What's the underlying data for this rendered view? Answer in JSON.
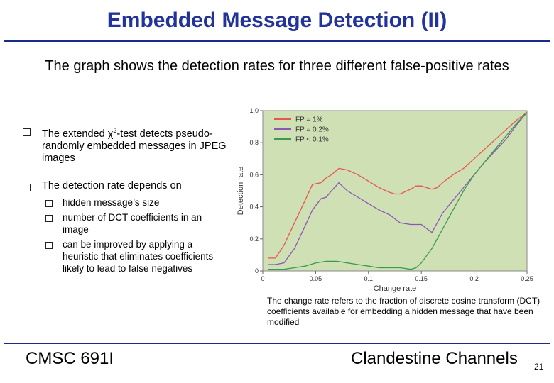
{
  "slide": {
    "title": "Embedded Message Detection (II)",
    "intro": "The graph shows the detection rates for three different false-positive rates",
    "bullets": [
      {
        "prefix": "The extended ",
        "chi": "χ",
        "sup": "2",
        "suffix": "-test detects pseudo-randomly embedded messages in JPEG images"
      },
      {
        "text": "The detection rate depends on"
      }
    ],
    "sub_bullets": [
      "hidden message’s size",
      "number of DCT coefficients in an image",
      "can be improved by applying a heuristic that eliminates coefficients likely to lead to false negatives"
    ],
    "caption": "The change rate refers to the fraction of discrete cosine transform (DCT) coefficients available for embedding a hidden message that have been modified",
    "footer_left": "CMSC 691I",
    "footer_right": "Clandestine Channels",
    "page_number": "21"
  },
  "chart_data": {
    "type": "line",
    "xlabel": "Change rate",
    "ylabel": "Detection rate",
    "xlim": [
      0,
      0.25
    ],
    "ylim": [
      0,
      1.0
    ],
    "xticks": [
      "0",
      "0.05",
      "0.1",
      "0.15",
      "0.2",
      "0.25"
    ],
    "yticks": [
      "0",
      "0.2",
      "0.4",
      "0.6",
      "0.8",
      "1.0"
    ],
    "legend_position": "top-left",
    "grid": false,
    "background": "#cfe0b4",
    "series": [
      {
        "name": "FP = 1%",
        "color": "#e8554d",
        "x": [
          0.005,
          0.012,
          0.02,
          0.03,
          0.04,
          0.047,
          0.055,
          0.06,
          0.065,
          0.072,
          0.08,
          0.09,
          0.1,
          0.11,
          0.12,
          0.125,
          0.13,
          0.14,
          0.145,
          0.15,
          0.155,
          0.16,
          0.165,
          0.17,
          0.18,
          0.19,
          0.2,
          0.21,
          0.22,
          0.23,
          0.24,
          0.25
        ],
        "y": [
          0.08,
          0.08,
          0.16,
          0.3,
          0.44,
          0.54,
          0.55,
          0.58,
          0.6,
          0.64,
          0.63,
          0.6,
          0.56,
          0.52,
          0.49,
          0.48,
          0.48,
          0.51,
          0.53,
          0.53,
          0.52,
          0.51,
          0.52,
          0.55,
          0.6,
          0.64,
          0.7,
          0.76,
          0.82,
          0.88,
          0.94,
          0.99
        ]
      },
      {
        "name": "FP = 0.2%",
        "color": "#8a57b8",
        "x": [
          0.005,
          0.012,
          0.02,
          0.03,
          0.04,
          0.047,
          0.055,
          0.06,
          0.065,
          0.072,
          0.08,
          0.09,
          0.1,
          0.11,
          0.12,
          0.13,
          0.14,
          0.15,
          0.16,
          0.17,
          0.18,
          0.19,
          0.2,
          0.21,
          0.22,
          0.23,
          0.24,
          0.25
        ],
        "y": [
          0.04,
          0.04,
          0.05,
          0.14,
          0.28,
          0.38,
          0.45,
          0.46,
          0.5,
          0.55,
          0.5,
          0.46,
          0.42,
          0.38,
          0.35,
          0.3,
          0.29,
          0.29,
          0.24,
          0.36,
          0.44,
          0.52,
          0.6,
          0.68,
          0.75,
          0.82,
          0.91,
          0.99
        ]
      },
      {
        "name": "FP < 0.1%",
        "color": "#3a9a50",
        "x": [
          0.005,
          0.02,
          0.03,
          0.04,
          0.05,
          0.06,
          0.07,
          0.08,
          0.09,
          0.1,
          0.11,
          0.12,
          0.13,
          0.14,
          0.145,
          0.15,
          0.16,
          0.17,
          0.18,
          0.19,
          0.2,
          0.21,
          0.22,
          0.23,
          0.24,
          0.25
        ],
        "y": [
          0.01,
          0.01,
          0.02,
          0.03,
          0.05,
          0.06,
          0.06,
          0.05,
          0.04,
          0.03,
          0.02,
          0.02,
          0.02,
          0.01,
          0.02,
          0.05,
          0.14,
          0.26,
          0.38,
          0.5,
          0.6,
          0.68,
          0.76,
          0.84,
          0.92,
          0.99
        ]
      }
    ]
  }
}
